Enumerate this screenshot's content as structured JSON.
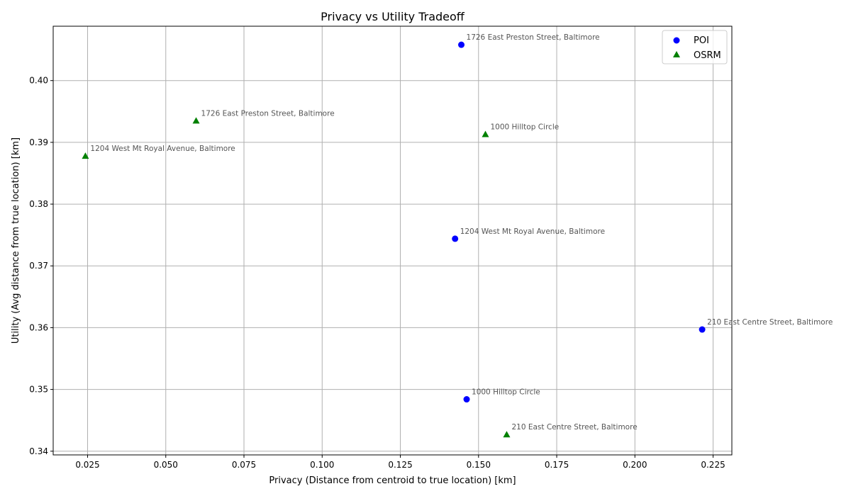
{
  "chart_data": {
    "type": "scatter",
    "title": "Privacy vs Utility Tradeoff",
    "xlabel": "Privacy (Distance from centroid to true location) [km]",
    "ylabel": "Utility (Avg distance from true location) [km]",
    "xlim": [
      0.014,
      0.231
    ],
    "ylim": [
      0.3394,
      0.4088
    ],
    "xticks": [
      0.025,
      0.05,
      0.075,
      0.1,
      0.125,
      0.15,
      0.175,
      0.2,
      0.225
    ],
    "xtick_labels": [
      "0.025",
      "0.050",
      "0.075",
      "0.100",
      "0.125",
      "0.150",
      "0.175",
      "0.200",
      "0.225"
    ],
    "yticks": [
      0.34,
      0.35,
      0.36,
      0.37,
      0.38,
      0.39,
      0.4
    ],
    "ytick_labels": [
      "0.34",
      "0.35",
      "0.36",
      "0.37",
      "0.38",
      "0.39",
      "0.40"
    ],
    "grid": true,
    "legend": {
      "placement": "top-right"
    },
    "series": [
      {
        "name": "POI",
        "marker": "circle",
        "color": "#0000ff",
        "points": [
          {
            "x": 0.1445,
            "y": 0.4058,
            "label": "1726 East Preston Street, Baltimore"
          },
          {
            "x": 0.1425,
            "y": 0.3744,
            "label": "1204 West Mt Royal Avenue, Baltimore"
          },
          {
            "x": 0.2215,
            "y": 0.3597,
            "label": "210 East Centre Street, Baltimore"
          },
          {
            "x": 0.1462,
            "y": 0.3484,
            "label": "1000 Hilltop Circle"
          }
        ]
      },
      {
        "name": "OSRM",
        "marker": "triangle",
        "color": "#008000",
        "points": [
          {
            "x": 0.0597,
            "y": 0.3935,
            "label": "1726 East Preston Street, Baltimore"
          },
          {
            "x": 0.1522,
            "y": 0.3913,
            "label": "1000 Hilltop Circle"
          },
          {
            "x": 0.0243,
            "y": 0.3878,
            "label": "1204 West Mt Royal Avenue, Baltimore"
          },
          {
            "x": 0.159,
            "y": 0.3427,
            "label": "210 East Centre Street, Baltimore"
          }
        ]
      }
    ]
  }
}
